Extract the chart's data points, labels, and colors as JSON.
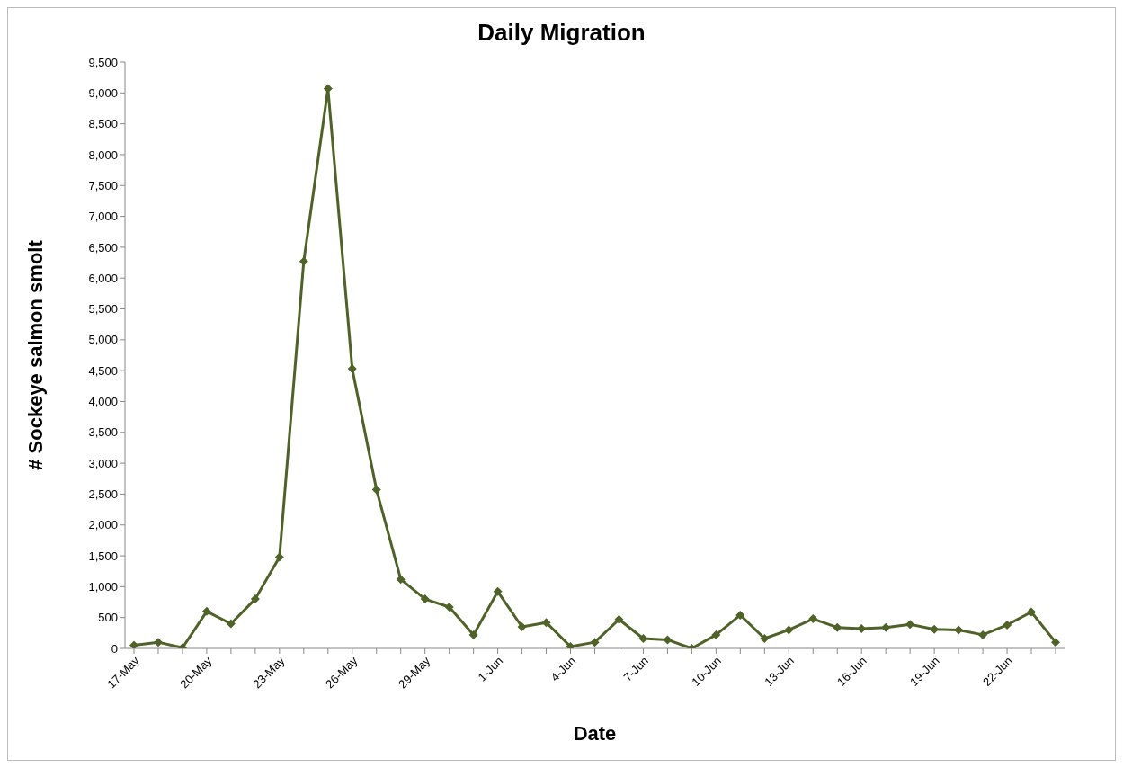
{
  "chart_data": {
    "type": "line",
    "title": "Daily Migration",
    "xlabel": "Date",
    "ylabel": "# Sockeye salmon smolt",
    "categories": [
      "17-May",
      null,
      null,
      "20-May",
      null,
      null,
      "23-May",
      null,
      null,
      "26-May",
      null,
      null,
      "29-May",
      null,
      null,
      "1-Jun",
      null,
      null,
      "4-Jun",
      null,
      null,
      "7-Jun",
      null,
      null,
      "10-Jun",
      null,
      null,
      "13-Jun",
      null,
      null,
      "16-Jun",
      null,
      null,
      "19-Jun",
      null,
      null,
      "22-Jun",
      null,
      null
    ],
    "series": [
      {
        "color": "#4f6228",
        "values": [
          50,
          100,
          10,
          600,
          400,
          800,
          1480,
          6270,
          9070,
          4530,
          2570,
          1120,
          800,
          670,
          220,
          920,
          350,
          420,
          30,
          100,
          470,
          160,
          140,
          0,
          220,
          540,
          160,
          300,
          480,
          340,
          320,
          340,
          390,
          310,
          300,
          220,
          380,
          590,
          100
        ]
      }
    ],
    "ylim": [
      0,
      9500
    ],
    "yticks": [
      0,
      500,
      {
        "value": 1000,
        "label": "1,000"
      },
      {
        "value": 1500,
        "label": "1,500"
      },
      {
        "value": 2000,
        "label": "2,000"
      },
      {
        "value": 2500,
        "label": "2,500"
      },
      {
        "value": 3000,
        "label": "3,000"
      },
      {
        "value": 3500,
        "label": "3,500"
      },
      {
        "value": 4000,
        "label": "4,000"
      },
      {
        "value": 4500,
        "label": "4,500"
      },
      {
        "value": 5000,
        "label": "5,000"
      },
      {
        "value": 5500,
        "label": "5,500"
      },
      {
        "value": 6000,
        "label": "6,000"
      },
      {
        "value": 6500,
        "label": "6,500"
      },
      {
        "value": 7000,
        "label": "7,000"
      },
      {
        "value": 7500,
        "label": "7,500"
      },
      {
        "value": 8000,
        "label": "8,000"
      },
      {
        "value": 8500,
        "label": "8,500"
      },
      {
        "value": 9000,
        "label": "9,000"
      },
      {
        "value": 9500,
        "label": "9,500"
      }
    ],
    "grid": false,
    "legend": false,
    "marker": "diamond",
    "line_style": "solid"
  }
}
